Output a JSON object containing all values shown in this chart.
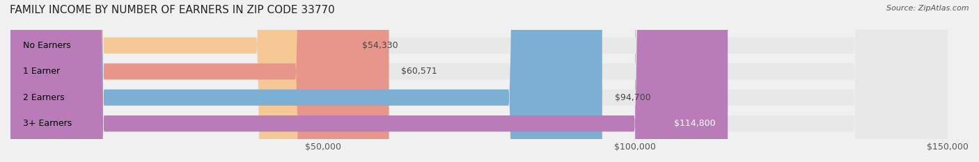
{
  "title": "FAMILY INCOME BY NUMBER OF EARNERS IN ZIP CODE 33770",
  "source": "Source: ZipAtlas.com",
  "categories": [
    "No Earners",
    "1 Earner",
    "2 Earners",
    "3+ Earners"
  ],
  "values": [
    54330,
    60571,
    94700,
    114800
  ],
  "bar_colors": [
    "#f5c896",
    "#e8958a",
    "#7bafd4",
    "#b87db8"
  ],
  "label_colors": [
    "#555555",
    "#555555",
    "#555555",
    "#ffffff"
  ],
  "value_labels": [
    "$54,330",
    "$60,571",
    "$94,700",
    "$114,800"
  ],
  "xlim": [
    0,
    150000
  ],
  "xticks": [
    50000,
    100000,
    150000
  ],
  "xtick_labels": [
    "$50,000",
    "$100,000",
    "$150,000"
  ],
  "background_color": "#f0f0f0",
  "bar_background_color": "#e8e8e8",
  "title_fontsize": 11,
  "source_fontsize": 8,
  "label_fontsize": 9,
  "value_fontsize": 9,
  "tick_fontsize": 9
}
